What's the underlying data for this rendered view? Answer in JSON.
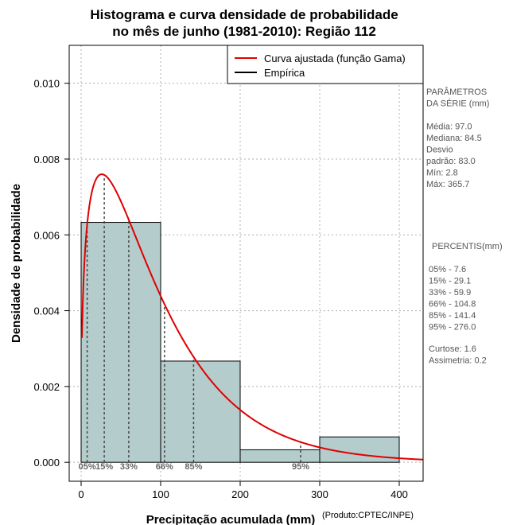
{
  "chart_data": {
    "type": "bar",
    "title_lines": [
      "Histograma e curva densidade de probabilidade",
      "no mês de junho (1981-2010): Região 112"
    ],
    "xlabel": "Precipitação acumulada (mm)",
    "ylabel": "Densidade de probabilidade",
    "credit": "(Produto:CPTEC/INPE)",
    "xlim": [
      -15,
      430
    ],
    "ylim": [
      -0.0005,
      0.011
    ],
    "x_ticks": [
      0,
      100,
      200,
      300,
      400
    ],
    "y_ticks": [
      0.0,
      0.002,
      0.004,
      0.006,
      0.008,
      0.01
    ],
    "y_tick_labels": [
      "0.000",
      "0.002",
      "0.004",
      "0.006",
      "0.008",
      "0.010"
    ],
    "grid": true,
    "histogram": {
      "bins": [
        {
          "x0": 0,
          "x1": 100,
          "density": 0.00633
        },
        {
          "x0": 100,
          "x1": 200,
          "density": 0.00267
        },
        {
          "x0": 200,
          "x1": 300,
          "density": 0.00033
        },
        {
          "x0": 300,
          "x1": 400,
          "density": 0.00067
        }
      ],
      "fill_color": "#b4cccc",
      "edge_color": "#000000"
    },
    "gamma_curve": {
      "shape": 1.366,
      "scale": 71.0,
      "color": "#e00000"
    },
    "legend": {
      "placement": "top-right",
      "entries": [
        {
          "label": "Curva ajustada (função Gama)",
          "color": "#e00000"
        },
        {
          "label": "Empírica",
          "color": "#000000"
        }
      ]
    },
    "percentiles": [
      {
        "label": "05%",
        "value": 7.6
      },
      {
        "label": "15%",
        "value": 29.1
      },
      {
        "label": "33%",
        "value": 59.9
      },
      {
        "label": "66%",
        "value": 104.8
      },
      {
        "label": "85%",
        "value": 141.4
      },
      {
        "label": "95%",
        "value": 276.0
      }
    ]
  },
  "side_panel": {
    "params_title": [
      "PARÂMETROS",
      " DA SÉRIE (mm)"
    ],
    "params": [
      "Média:  97.0",
      "Mediana:  84.5",
      "Desvio",
      "padrão:  83.0",
      "Mín:  2.8",
      "Máx:  365.7"
    ],
    "percentis_title": "PERCENTIS(mm)",
    "percentis": [
      "05% -  7.6",
      "15% -  29.1",
      "33% -  59.9",
      "66% -  104.8",
      "85% -  141.4",
      "95% -  276.0"
    ],
    "stats": [
      "Curtose:  1.6",
      "Assimetria:  0.2"
    ]
  }
}
